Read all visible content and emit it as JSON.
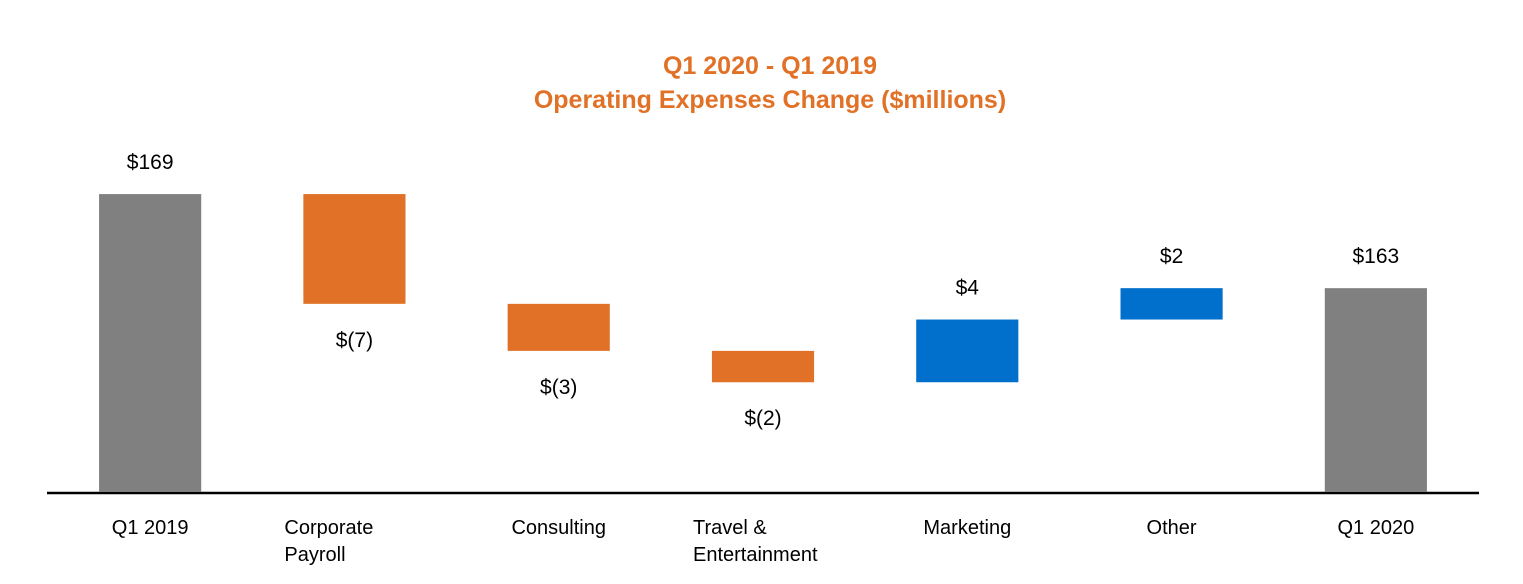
{
  "chart_data": {
    "type": "waterfall",
    "title": [
      "Q1 2020 - Q1 2019",
      "Operating Expenses Change ($millions)"
    ],
    "categories": [
      "Q1 2019",
      "Corporate Payroll",
      "Consulting",
      "Travel & Entertainment",
      "Marketing",
      "Other",
      "Q1 2020"
    ],
    "measure": [
      "total",
      "relative",
      "relative",
      "relative",
      "relative",
      "relative",
      "total"
    ],
    "values": [
      169,
      -7,
      -3,
      -2,
      4,
      2,
      163
    ],
    "value_labels": [
      "$169",
      "$(7)",
      "$(3)",
      "$(2)",
      "$4",
      "$2",
      "$163"
    ],
    "colors": {
      "total": "#808080",
      "decrease": "#e07126",
      "increase": "#0070cc"
    },
    "ylim": [
      150,
      175
    ]
  }
}
